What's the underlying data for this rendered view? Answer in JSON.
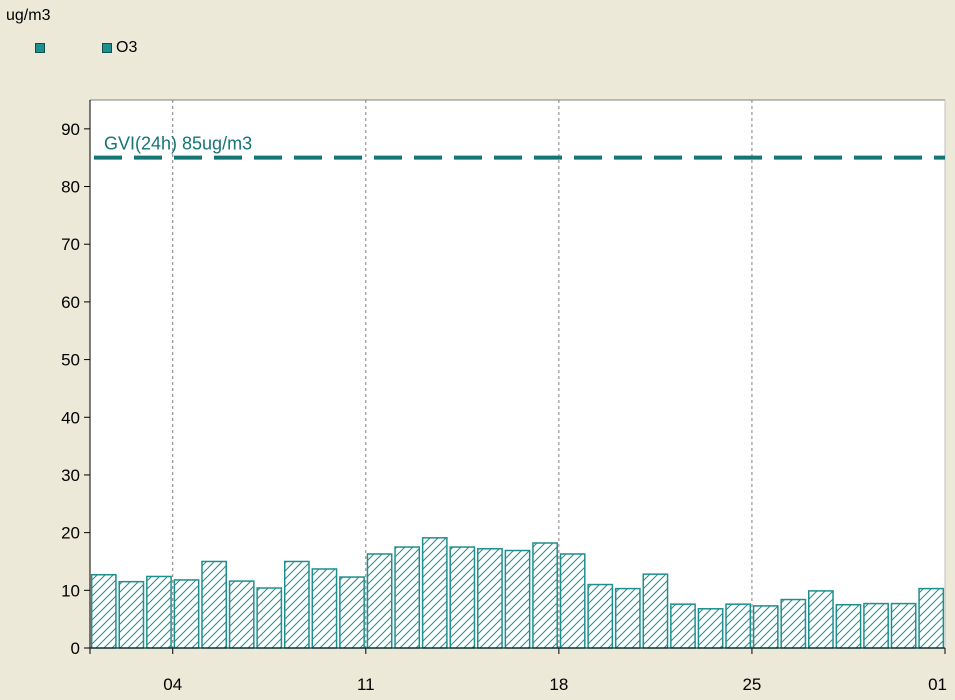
{
  "unit_label": "ug/m3",
  "legend": [
    {
      "name": "",
      "color": "#1e8f8f"
    },
    {
      "name": "O3",
      "color": "#1e8f8f"
    }
  ],
  "colors": {
    "series": "#1e8f8f",
    "series_dark": "#157575",
    "plot_bg": "#ffffff",
    "window_bg": "#ece9d8"
  },
  "chart_data": {
    "type": "bar",
    "series": [
      {
        "name": "O3",
        "values": [
          12.7,
          11.5,
          12.4,
          11.8,
          15.0,
          11.6,
          10.4,
          15.0,
          13.7,
          12.3,
          16.3,
          17.5,
          19.1,
          17.5,
          17.2,
          16.9,
          18.2,
          16.3,
          11.0,
          10.3,
          12.8,
          7.6,
          6.8,
          7.6,
          7.3,
          8.4,
          9.9,
          7.5,
          7.7,
          7.7,
          10.3
        ]
      }
    ],
    "x_tick_labels": [
      "04",
      "11",
      "18",
      "25",
      "01"
    ],
    "y_ticks": [
      0,
      10,
      20,
      30,
      40,
      50,
      60,
      70,
      80,
      90
    ],
    "ylim": [
      0,
      95
    ],
    "ylabel": "ug/m3",
    "reference_line": {
      "value": 85,
      "label": "GVI(24h) 85ug/m3",
      "style": "dashed"
    },
    "grid": "vertical dashed at week ticks",
    "legend_position": "top-left"
  }
}
